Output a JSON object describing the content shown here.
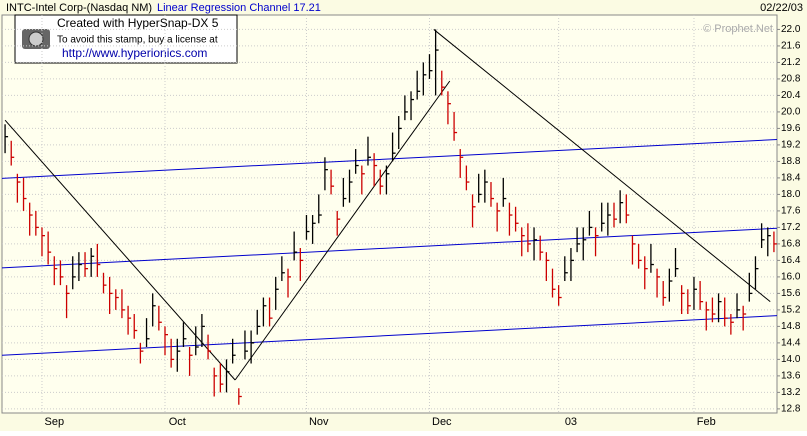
{
  "chart_data": {
    "type": "ohlc",
    "title": "INTC-Intel Corp-(Nasdaq NM)",
    "subtitle": "Linear Regression Channel 17.21",
    "date": "02/22/03",
    "credit": "© Prophet.Net",
    "stamp": {
      "title": "Created with HyperSnap-DX 5",
      "line": "To avoid this stamp, buy a license at",
      "url": "http://www.hyperionics.com"
    },
    "categories": [
      null,
      null,
      null,
      null,
      null,
      null,
      null,
      null,
      "Sep",
      null,
      null,
      null,
      null,
      null,
      null,
      null,
      null,
      null,
      null,
      null,
      null,
      null,
      null,
      null,
      null,
      null,
      null,
      null,
      "Oct",
      null,
      null,
      null,
      null,
      null,
      null,
      null,
      null,
      null,
      null,
      null,
      null,
      null,
      null,
      null,
      null,
      null,
      null,
      null,
      null,
      null,
      null,
      "Nov",
      null,
      null,
      null,
      null,
      null,
      null,
      null,
      null,
      null,
      null,
      null,
      null,
      null,
      null,
      null,
      null,
      null,
      null,
      null,
      "Dec",
      null,
      null,
      null,
      null,
      null,
      null,
      null,
      null,
      null,
      null,
      null,
      null,
      null,
      null,
      null,
      null,
      null,
      null,
      null,
      null,
      "03",
      null,
      null,
      null,
      null,
      null,
      null,
      null,
      null,
      null,
      null,
      null,
      null,
      null,
      null,
      null,
      null,
      null,
      null,
      null,
      null,
      null,
      "Feb",
      null,
      null,
      null,
      null,
      null,
      null,
      null,
      null,
      null,
      null,
      null
    ],
    "high": [
      19.7,
      19.3,
      18.5,
      18.4,
      17.8,
      17.6,
      17.2,
      17.1,
      16.5,
      16.4,
      15.8,
      16.5,
      16.6,
      16.6,
      16.7,
      16.8,
      16.1,
      16.0,
      15.7,
      15.7,
      15.3,
      15.1,
      14.4,
      15.0,
      15.6,
      15.3,
      14.8,
      14.5,
      14.5,
      14.9,
      14.3,
      14.8,
      15.1,
      14.6,
      13.8,
      13.9,
      14.0,
      14.5,
      13.3,
      14.7,
      14.7,
      15.2,
      15.5,
      15.5,
      16.0,
      16.5,
      16.2,
      17.1,
      16.7,
      17.5,
      17.5,
      18.0,
      18.9,
      18.6,
      17.6,
      18.4,
      18.6,
      19.1,
      18.7,
      19.4,
      19.0,
      18.6,
      18.7,
      19.5,
      19.9,
      20.4,
      20.5,
      21.0,
      21.2,
      21.4,
      22.0,
      21.0,
      20.5,
      20.0,
      19.1,
      18.7,
      18.0,
      18.5,
      18.6,
      18.3,
      17.8,
      18.4,
      17.8,
      17.7,
      17.2,
      17.3,
      17.2,
      17.0,
      16.6,
      16.2,
      15.8,
      16.5,
      16.7,
      17.2,
      17.2,
      17.6,
      17.2,
      17.8,
      17.8,
      17.8,
      18.1,
      18.0,
      17.0,
      16.8,
      16.5,
      16.8,
      16.2,
      15.9,
      16.2,
      16.7,
      15.8,
      15.7,
      16.0,
      15.9,
      15.4,
      15.5,
      15.6,
      15.5,
      15.1,
      15.6,
      15.3,
      16.1,
      16.5,
      17.3,
      17.2,
      17.1
    ],
    "low": [
      19.0,
      18.7,
      17.8,
      17.6,
      17.0,
      17.0,
      16.5,
      16.3,
      15.8,
      15.8,
      15.0,
      15.7,
      15.9,
      16.0,
      16.0,
      16.0,
      15.6,
      15.1,
      15.2,
      15.0,
      14.6,
      14.5,
      13.9,
      14.3,
      14.8,
      14.7,
      14.1,
      13.8,
      13.7,
      14.3,
      13.6,
      14.1,
      14.3,
      14.0,
      13.1,
      13.2,
      13.2,
      13.9,
      12.9,
      14.0,
      13.9,
      14.6,
      14.8,
      14.8,
      15.2,
      15.9,
      15.5,
      16.4,
      15.9,
      16.9,
      16.8,
      17.3,
      18.1,
      18.0,
      17.0,
      17.7,
      17.8,
      18.5,
      18.0,
      18.7,
      18.2,
      18.0,
      18.0,
      18.8,
      19.1,
      19.8,
      19.8,
      20.3,
      20.4,
      20.8,
      20.4,
      20.4,
      19.7,
      19.3,
      18.4,
      18.1,
      17.2,
      17.8,
      17.8,
      17.7,
      17.1,
      17.7,
      17.0,
      17.1,
      16.5,
      16.6,
      16.4,
      16.4,
      15.9,
      15.5,
      15.3,
      15.9,
      15.9,
      16.6,
      16.4,
      17.0,
      16.5,
      17.1,
      17.0,
      17.2,
      17.3,
      17.3,
      16.3,
      16.2,
      15.7,
      16.1,
      15.5,
      15.3,
      15.4,
      16.0,
      15.1,
      15.1,
      15.2,
      15.2,
      14.7,
      14.9,
      14.9,
      14.8,
      14.6,
      15.0,
      14.7,
      15.4,
      15.7,
      16.7,
      16.5,
      16.6
    ],
    "close": [
      19.4,
      18.9,
      18.3,
      17.9,
      17.5,
      17.2,
      17.0,
      16.6,
      16.2,
      16.0,
      15.6,
      16.0,
      16.3,
      16.2,
      16.5,
      16.3,
      15.8,
      15.6,
      15.5,
      15.2,
      15.0,
      14.7,
      14.2,
      14.5,
      15.3,
      14.9,
      14.6,
      14.0,
      14.2,
      14.5,
      14.1,
      14.3,
      14.8,
      14.2,
      13.6,
      13.4,
      13.7,
      14.1,
      13.1,
      14.2,
      14.4,
      14.8,
      15.3,
      15.0,
      15.7,
      16.1,
      16.0,
      16.6,
      16.4,
      17.1,
      17.3,
      17.5,
      18.6,
      18.2,
      17.4,
      17.9,
      18.3,
      18.7,
      18.5,
      18.9,
      18.7,
      18.2,
      18.5,
      19.0,
      19.6,
      20.0,
      20.3,
      20.5,
      20.9,
      21.0,
      21.5,
      20.6,
      20.2,
      19.5,
      18.9,
      18.3,
      17.7,
      18.0,
      18.3,
      17.9,
      17.6,
      17.9,
      17.5,
      17.3,
      17.0,
      16.8,
      16.9,
      16.6,
      16.4,
      15.7,
      15.5,
      16.1,
      16.4,
      16.8,
      16.9,
      17.2,
      17.0,
      17.3,
      17.5,
      17.4,
      17.8,
      17.5,
      16.8,
      16.4,
      16.2,
      16.3,
      16.0,
      15.5,
      15.9,
      16.2,
      15.6,
      15.3,
      15.7,
      15.4,
      15.2,
      15.1,
      15.4,
      15.0,
      14.9,
      15.2,
      15.1,
      15.6,
      16.2,
      16.9,
      17.0,
      16.8
    ],
    "up_color": "#000000",
    "down_color": "#cc0000",
    "trend_lines": [
      {
        "x": [
          -0.5,
          125.5
        ],
        "y": [
          18.39,
          19.33
        ],
        "color": "#0000cc"
      },
      {
        "x": [
          -0.5,
          125.5
        ],
        "y": [
          16.22,
          17.18
        ],
        "color": "#0000cc"
      },
      {
        "x": [
          -0.5,
          125.5
        ],
        "y": [
          14.1,
          15.06
        ],
        "color": "#0000cc"
      },
      {
        "x": [
          0,
          37.4
        ],
        "y": [
          19.8,
          13.5
        ],
        "color": "#000000"
      },
      {
        "x": [
          37.4,
          72.3
        ],
        "y": [
          13.5,
          20.75
        ],
        "color": "#000000"
      },
      {
        "x": [
          69.7,
          124.4
        ],
        "y": [
          22.0,
          15.4
        ],
        "color": "#000000"
      }
    ],
    "ylim": [
      12.7,
      22.35
    ],
    "yticks": [
      12.8,
      13.2,
      13.6,
      {
        "value": 14,
        "label": "14.0"
      },
      14.4,
      14.8,
      15.2,
      15.6,
      {
        "value": 16,
        "label": "16.0"
      },
      16.4,
      16.8,
      17.2,
      17.6,
      {
        "value": 18,
        "label": "18.0"
      },
      18.4,
      18.8,
      19.2,
      19.6,
      {
        "value": 20,
        "label": "20.0"
      },
      20.4,
      20.8,
      21.2,
      21.6,
      {
        "value": 22,
        "label": "22.0"
      }
    ],
    "grid": true
  }
}
